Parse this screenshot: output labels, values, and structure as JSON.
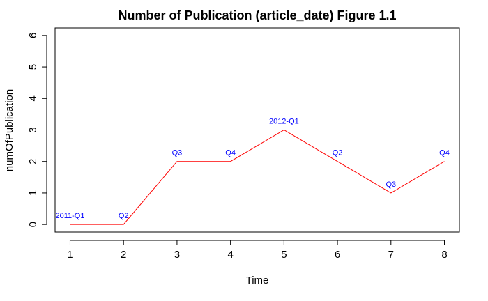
{
  "chart_data": {
    "type": "line",
    "title": "Number of Publication (article_date) Figure 1.1",
    "xlabel": "Time",
    "ylabel": "numOfPublication",
    "xlim": [
      0.72,
      8.28
    ],
    "ylim": [
      -0.24,
      6.24
    ],
    "xticks": [
      1,
      2,
      3,
      4,
      5,
      6,
      7,
      8
    ],
    "yticks": [
      0,
      1,
      2,
      3,
      4,
      5,
      6
    ],
    "grid": false,
    "series": [
      {
        "x": [
          1,
          2,
          3,
          4,
          5,
          6,
          7,
          8
        ],
        "values": [
          0,
          0,
          2,
          2,
          3,
          2,
          1,
          2
        ],
        "point_labels": [
          "2011-Q1",
          "Q2",
          "Q3",
          "Q4",
          "2012-Q1",
          "Q2",
          "Q3",
          "Q4"
        ]
      }
    ],
    "colors": {
      "line": "#ff0000",
      "labels": "#0000ff",
      "axis": "#000000"
    }
  }
}
